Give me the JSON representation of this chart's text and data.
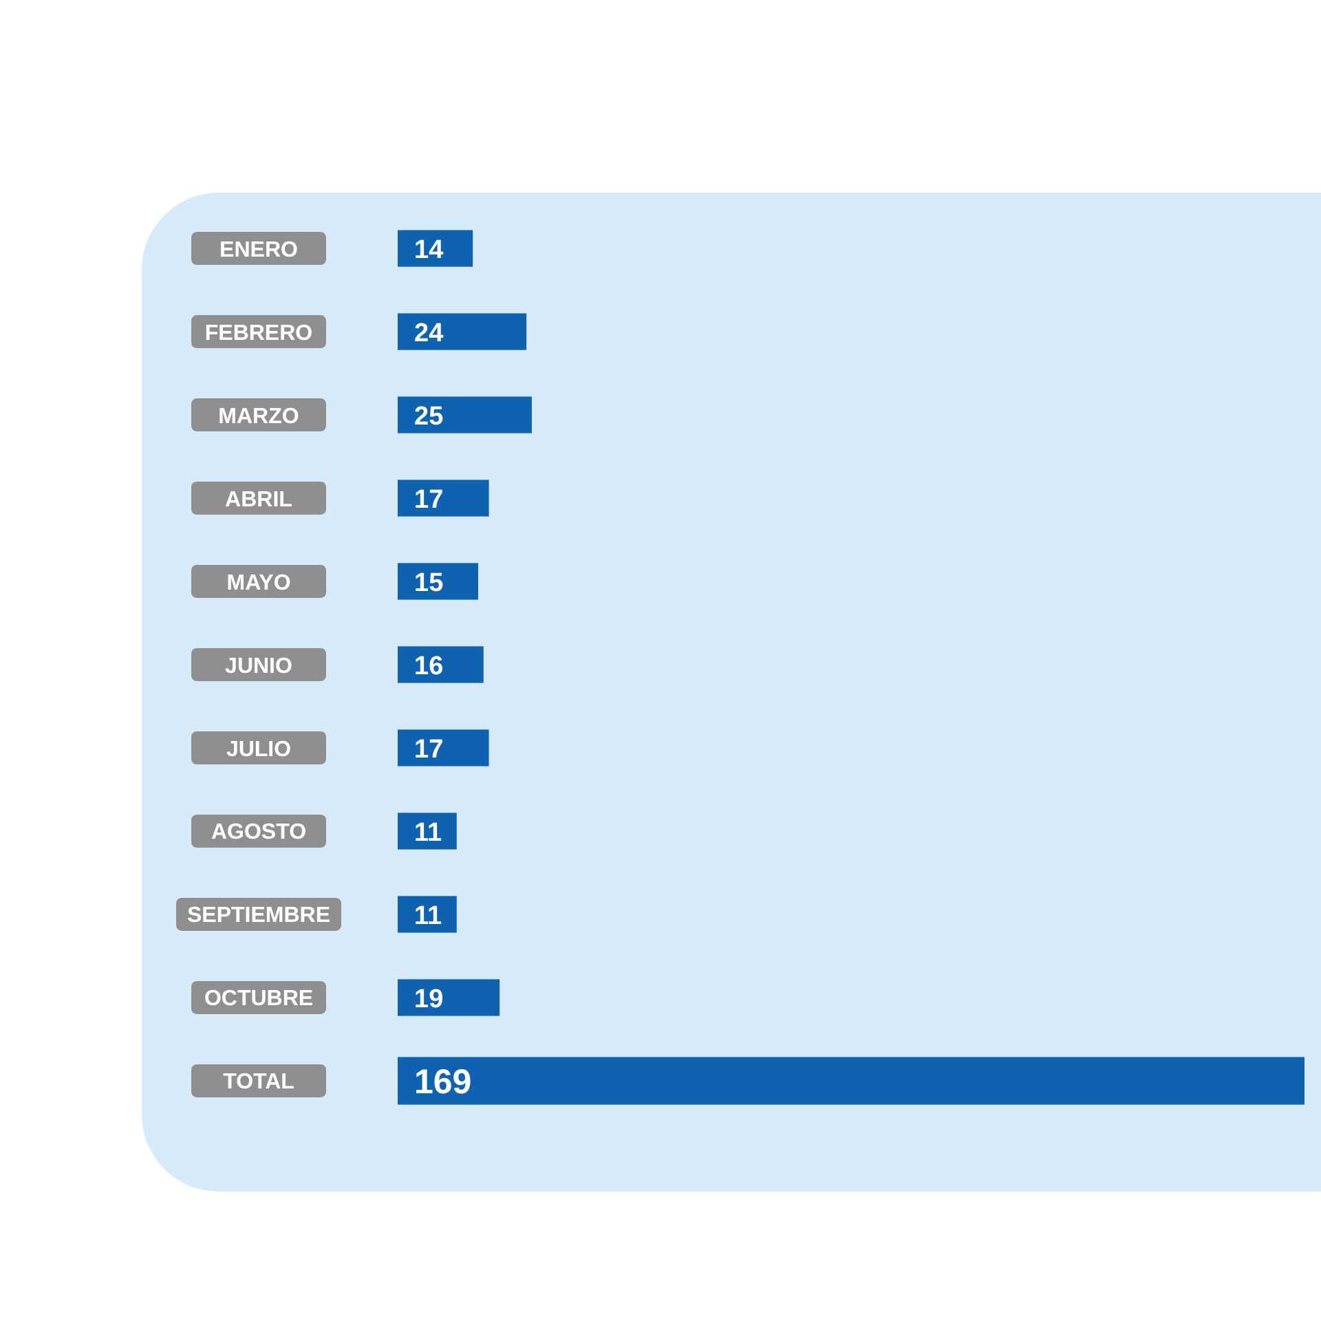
{
  "chart_data": {
    "type": "bar",
    "orientation": "horizontal",
    "categories": [
      "ENERO",
      "FEBRERO",
      "MARZO",
      "ABRIL",
      "MAYO",
      "JUNIO",
      "JULIO",
      "AGOSTO",
      "SEPTIEMBRE",
      "OCTUBRE",
      "TOTAL"
    ],
    "values": [
      14,
      24,
      25,
      17,
      15,
      16,
      17,
      11,
      11,
      19,
      169
    ],
    "color": "#0f62b0",
    "data_labels": true
  }
}
